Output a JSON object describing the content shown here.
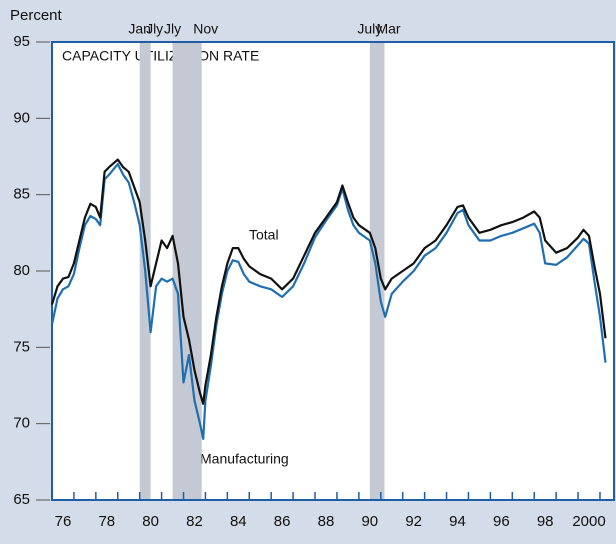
{
  "chart_data": {
    "type": "line",
    "title": "CAPACITY UTILIZATION RATE",
    "y_label": "Percent",
    "annotations": [
      "Total",
      "Manufacturing"
    ],
    "xlim": [
      1976,
      2001.64
    ],
    "ylim": [
      65,
      95
    ],
    "yticks": [
      65,
      70,
      75,
      80,
      85,
      90,
      95
    ],
    "xticks": [
      {
        "value": 1976.5,
        "label": "76"
      },
      {
        "value": 1978.5,
        "label": "78"
      },
      {
        "value": 1980.5,
        "label": "80"
      },
      {
        "value": 1982.5,
        "label": "82"
      },
      {
        "value": 1984.5,
        "label": "84"
      },
      {
        "value": 1986.5,
        "label": "86"
      },
      {
        "value": 1988.5,
        "label": "88"
      },
      {
        "value": 1990.5,
        "label": "90"
      },
      {
        "value": 1992.5,
        "label": "92"
      },
      {
        "value": 1994.5,
        "label": "94"
      },
      {
        "value": 1996.5,
        "label": "96"
      },
      {
        "value": 1998.5,
        "label": "98"
      },
      {
        "value": 2000.5,
        "label": "2000"
      }
    ],
    "recessions": [
      {
        "start": 1980.0,
        "end": 1980.5,
        "start_label": "Jan",
        "end_label": "Jly"
      },
      {
        "start": 1981.5,
        "end": 1982.83,
        "start_label": "Jly",
        "end_label": "Nov"
      },
      {
        "start": 1990.5,
        "end": 1991.17,
        "start_label": "July",
        "end_label": "Mar"
      }
    ],
    "recession_color": "#c4c9d3",
    "x": [
      1976.0,
      1976.25,
      1976.5,
      1976.75,
      1977.0,
      1977.25,
      1977.5,
      1977.75,
      1978.0,
      1978.2,
      1978.4,
      1978.6,
      1979.0,
      1979.25,
      1979.5,
      1979.75,
      1980.0,
      1980.25,
      1980.5,
      1980.75,
      1981.0,
      1981.25,
      1981.5,
      1981.75,
      1982.0,
      1982.25,
      1982.5,
      1982.75,
      1982.9,
      1983.0,
      1983.25,
      1983.5,
      1983.75,
      1984.0,
      1984.25,
      1984.5,
      1984.75,
      1985.0,
      1985.5,
      1986.0,
      1986.5,
      1987.0,
      1987.5,
      1988.0,
      1988.5,
      1989.0,
      1989.25,
      1989.5,
      1989.75,
      1990.0,
      1990.5,
      1990.75,
      1991.0,
      1991.2,
      1991.5,
      1992.0,
      1992.5,
      1993.0,
      1993.5,
      1994.0,
      1994.5,
      1994.75,
      1995.0,
      1995.5,
      1996.0,
      1996.5,
      1997.0,
      1997.5,
      1998.0,
      1998.25,
      1998.5,
      1999.0,
      1999.5,
      2000.0,
      2000.25,
      2000.5,
      2000.75,
      2001.0,
      2001.25
    ],
    "series": [
      {
        "name": "Total",
        "color": "#111111",
        "values": [
          77.8,
          79.0,
          79.5,
          79.6,
          80.5,
          82.0,
          83.5,
          84.4,
          84.2,
          83.5,
          86.5,
          86.8,
          87.3,
          86.8,
          86.5,
          85.5,
          84.5,
          82.0,
          79.0,
          80.5,
          82.0,
          81.5,
          82.3,
          80.5,
          77.0,
          75.5,
          73.5,
          72.0,
          71.3,
          72.5,
          74.5,
          77.0,
          79.0,
          80.5,
          81.5,
          81.5,
          80.8,
          80.3,
          79.8,
          79.5,
          78.8,
          79.5,
          81.0,
          82.5,
          83.5,
          84.5,
          85.6,
          84.5,
          83.5,
          83.0,
          82.5,
          81.5,
          79.5,
          78.8,
          79.5,
          80.0,
          80.5,
          81.5,
          82.0,
          83.0,
          84.2,
          84.3,
          83.5,
          82.5,
          82.7,
          83.0,
          83.2,
          83.5,
          83.9,
          83.5,
          82.0,
          81.2,
          81.5,
          82.2,
          82.7,
          82.3,
          80.3,
          78.5,
          75.6
        ]
      },
      {
        "name": "Manufacturing",
        "color": "#1f6fb0",
        "values": [
          76.5,
          78.2,
          78.8,
          79.0,
          79.8,
          81.5,
          83.0,
          83.6,
          83.4,
          83.0,
          86.0,
          86.3,
          87.0,
          86.3,
          85.8,
          84.5,
          83.0,
          80.0,
          76.0,
          79.0,
          79.5,
          79.3,
          79.5,
          78.5,
          72.7,
          74.5,
          71.5,
          70.0,
          69.0,
          71.5,
          73.8,
          76.5,
          78.5,
          80.0,
          80.7,
          80.6,
          79.8,
          79.3,
          79.0,
          78.8,
          78.3,
          79.0,
          80.5,
          82.2,
          83.3,
          84.3,
          85.4,
          84.0,
          83.0,
          82.5,
          82.0,
          80.5,
          78.0,
          77.0,
          78.5,
          79.3,
          80.0,
          81.0,
          81.5,
          82.5,
          83.8,
          84.0,
          83.0,
          82.0,
          82.0,
          82.3,
          82.5,
          82.8,
          83.1,
          82.5,
          80.5,
          80.4,
          80.9,
          81.7,
          82.1,
          81.8,
          79.3,
          77.0,
          74.0
        ]
      }
    ]
  }
}
